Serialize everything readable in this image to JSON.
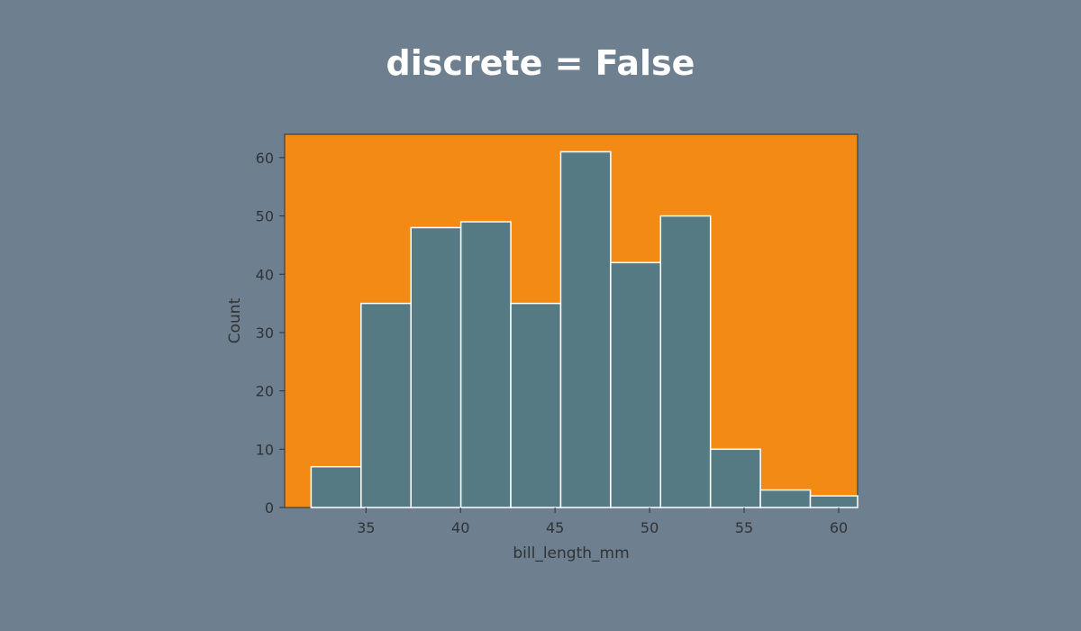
{
  "page": {
    "title": "discrete = False",
    "background": "#6e7f8f"
  },
  "chart_data": {
    "type": "bar",
    "title": "discrete = False",
    "xlabel": "bill_length_mm",
    "ylabel": "Count",
    "bin_edges": [
      32.1,
      34.74,
      37.38,
      40.02,
      42.66,
      45.3,
      47.94,
      50.58,
      53.22,
      55.86,
      58.5,
      61.0
    ],
    "values": [
      7,
      35,
      48,
      49,
      35,
      61,
      42,
      50,
      10,
      3,
      2
    ],
    "xlim": [
      30.7,
      61.0
    ],
    "ylim": [
      0,
      64
    ],
    "xticks": [
      35,
      40,
      45,
      50,
      55,
      60
    ],
    "yticks": [
      0,
      10,
      20,
      30,
      40,
      50,
      60
    ],
    "grid": false,
    "colors": {
      "axes_background": "#f28a14",
      "bar_fill": "#557a83",
      "bar_edge": "#ffffff",
      "axis": "#2f3336"
    }
  }
}
